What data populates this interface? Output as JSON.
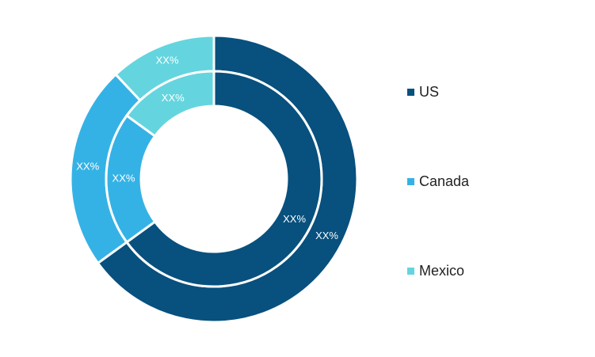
{
  "chart_data": {
    "type": "pie",
    "title": "",
    "categories": [
      "US",
      "Canada",
      "Mexico"
    ],
    "colors": [
      "#08507e",
      "#35b2e5",
      "#64d5de"
    ],
    "series": [
      {
        "ring": "outer",
        "values": [
          65,
          23,
          12
        ],
        "labels": [
          "XX%",
          "XX%",
          "XX%"
        ]
      },
      {
        "ring": "inner",
        "values": [
          65,
          20,
          15
        ],
        "labels": [
          "XX%",
          "XX%",
          "XX%"
        ]
      }
    ],
    "legend": {
      "position": "right",
      "items": [
        "US",
        "Canada",
        "Mexico"
      ]
    }
  }
}
